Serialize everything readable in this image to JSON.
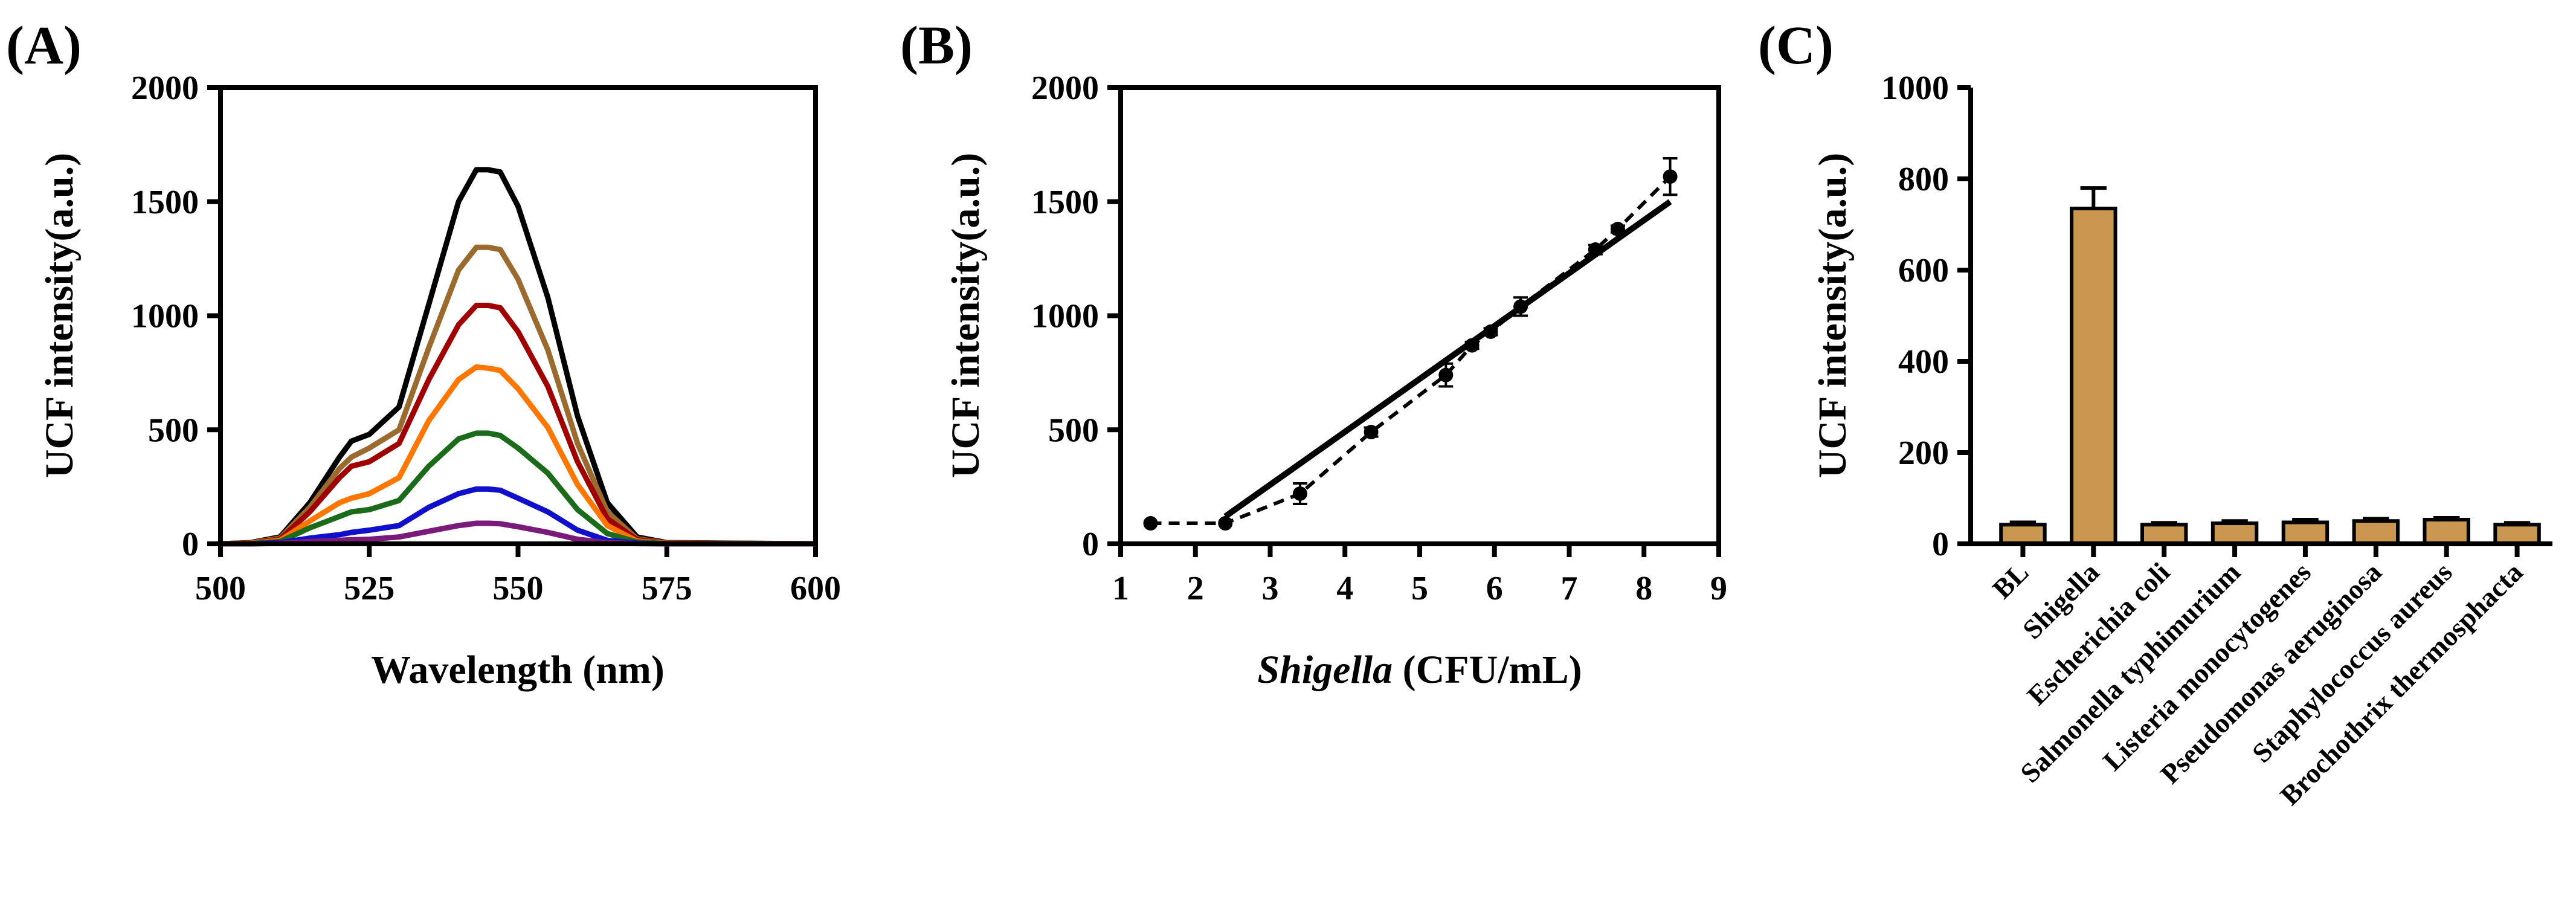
{
  "chart_data": [
    {
      "type": "line",
      "panel_label": "(A)",
      "xlabel": "Wavelength (nm)",
      "ylabel": "UCF intensity(a.u.)",
      "xlim": [
        500,
        600
      ],
      "ylim": [
        0,
        2000
      ],
      "xticks": [
        500,
        525,
        550,
        575,
        600
      ],
      "yticks": [
        0,
        500,
        1000,
        1500,
        2000
      ],
      "x": [
        500,
        505,
        510,
        515,
        520,
        522,
        525,
        530,
        535,
        540,
        543,
        545,
        547,
        550,
        555,
        560,
        565,
        570,
        575,
        600
      ],
      "series": [
        {
          "name": "s1",
          "color": "#000000",
          "values": [
            0,
            5,
            30,
            180,
            380,
            450,
            480,
            600,
            1050,
            1500,
            1640,
            1640,
            1630,
            1480,
            1080,
            560,
            180,
            30,
            5,
            0
          ]
        },
        {
          "name": "s2",
          "color": "#9b6a2f",
          "values": [
            0,
            4,
            25,
            160,
            330,
            380,
            420,
            500,
            860,
            1200,
            1300,
            1300,
            1290,
            1160,
            850,
            440,
            140,
            22,
            4,
            0
          ]
        },
        {
          "name": "s3",
          "color": "#a00000",
          "values": [
            0,
            3,
            20,
            140,
            290,
            340,
            360,
            440,
            720,
            960,
            1045,
            1045,
            1035,
            930,
            690,
            360,
            110,
            18,
            3,
            0
          ]
        },
        {
          "name": "s4",
          "color": "#ff7700",
          "values": [
            0,
            2,
            15,
            100,
            180,
            200,
            220,
            290,
            540,
            720,
            775,
            770,
            760,
            680,
            510,
            260,
            80,
            12,
            2,
            0
          ]
        },
        {
          "name": "s5",
          "color": "#1b6b1b",
          "values": [
            0,
            1,
            10,
            70,
            120,
            140,
            150,
            190,
            340,
            460,
            485,
            485,
            475,
            420,
            310,
            150,
            45,
            8,
            1,
            0
          ]
        },
        {
          "name": "s6",
          "color": "#1010cc",
          "values": [
            0,
            0,
            5,
            25,
            40,
            50,
            60,
            80,
            160,
            220,
            240,
            240,
            235,
            200,
            140,
            60,
            15,
            3,
            0,
            0
          ]
        },
        {
          "name": "s7",
          "color": "#7a1a7a",
          "values": [
            0,
            0,
            2,
            10,
            15,
            18,
            20,
            30,
            55,
            80,
            90,
            90,
            88,
            75,
            50,
            20,
            5,
            1,
            0,
            0
          ]
        }
      ]
    },
    {
      "type": "scatter",
      "panel_label": "(B)",
      "xlabel_italic": "Shigella",
      "xlabel_rest": " (CFU/mL)",
      "ylabel": "UCF intensity(a.u.)",
      "xlim": [
        1,
        9
      ],
      "ylim": [
        0,
        2000
      ],
      "xticks": [
        1,
        2,
        3,
        4,
        5,
        6,
        7,
        8,
        9
      ],
      "yticks": [
        0,
        500,
        1000,
        1500,
        2000
      ],
      "points": [
        {
          "x": 1.4,
          "y": 90,
          "err": 0
        },
        {
          "x": 2.4,
          "y": 90,
          "err": 0
        },
        {
          "x": 3.4,
          "y": 220,
          "err": 45
        },
        {
          "x": 4.35,
          "y": 490,
          "err": 20
        },
        {
          "x": 5.35,
          "y": 740,
          "err": 50
        },
        {
          "x": 5.7,
          "y": 870,
          "err": 15
        },
        {
          "x": 5.95,
          "y": 930,
          "err": 15
        },
        {
          "x": 6.35,
          "y": 1040,
          "err": 40
        },
        {
          "x": 7.35,
          "y": 1290,
          "err": 20
        },
        {
          "x": 7.65,
          "y": 1380,
          "err": 15
        },
        {
          "x": 8.35,
          "y": 1610,
          "err": 80
        }
      ],
      "fit_line": {
        "x": [
          2.4,
          8.35
        ],
        "y": [
          120,
          1500
        ]
      }
    },
    {
      "type": "bar",
      "panel_label": "(C)",
      "ylabel": "UCF intensity(a.u.)",
      "ylim": [
        0,
        1000
      ],
      "yticks": [
        0,
        200,
        400,
        600,
        800,
        1000
      ],
      "bar_color": "#c9974f",
      "categories": [
        "BL",
        "Shigella",
        "Escherichia coli",
        "Salmonella typhimurium",
        "Listeria monocytogenes",
        "Pseudomonas aeruginosa",
        "Staphylococcus aureus",
        "Brochothrix thermosphacta"
      ],
      "values": [
        42,
        735,
        42,
        45,
        47,
        50,
        53,
        42
      ],
      "errors": [
        5,
        45,
        4,
        5,
        6,
        5,
        4,
        4
      ]
    }
  ]
}
